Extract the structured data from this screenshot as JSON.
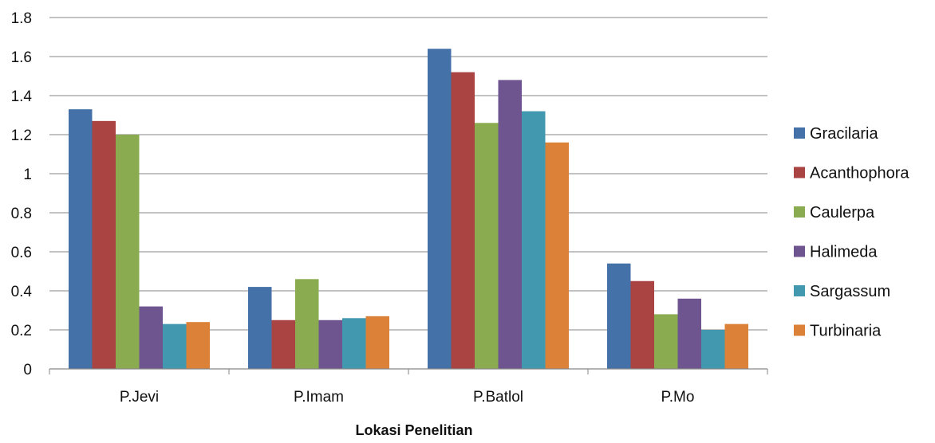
{
  "chart_data": {
    "type": "bar",
    "categories": [
      "P.Jevi",
      "P.Imam",
      "P.Batlol",
      "P.Mo"
    ],
    "series": [
      {
        "name": "Gracilaria",
        "color": "#4472a8",
        "values": [
          1.33,
          0.42,
          1.64,
          0.54
        ]
      },
      {
        "name": "Acanthophora",
        "color": "#a94442",
        "values": [
          1.27,
          0.25,
          1.52,
          0.45
        ]
      },
      {
        "name": "Caulerpa",
        "color": "#8aab4f",
        "values": [
          1.2,
          0.46,
          1.26,
          0.28
        ]
      },
      {
        "name": "Halimeda",
        "color": "#6e5590",
        "values": [
          0.32,
          0.25,
          1.48,
          0.36
        ]
      },
      {
        "name": "Sargassum",
        "color": "#4298ae",
        "values": [
          0.23,
          0.26,
          1.32,
          0.2
        ]
      },
      {
        "name": "Turbinaria",
        "color": "#db8138",
        "values": [
          0.24,
          0.27,
          1.16,
          0.23
        ]
      }
    ],
    "title": "",
    "xlabel": "Lokasi Penelitian",
    "ylabel": "",
    "ylim": [
      0,
      1.8
    ],
    "yticks": [
      "0",
      "0.2",
      "0.4",
      "0.6",
      "0.8",
      "1",
      "1.2",
      "1.4",
      "1.6",
      "1.8"
    ],
    "grid": true,
    "legend_position": "right"
  }
}
